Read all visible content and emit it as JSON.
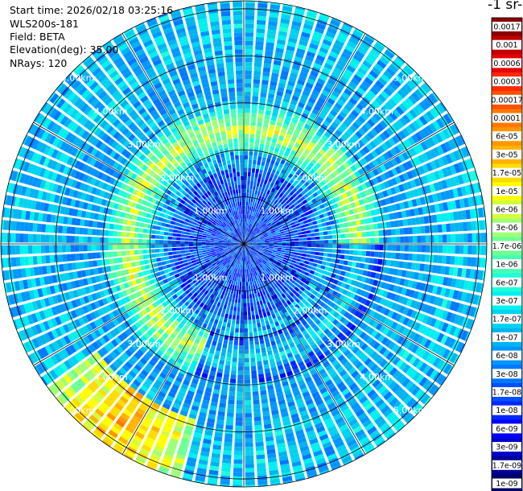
{
  "info": {
    "start_time": "Start time: 2026/02/18 03:25:16",
    "instrument": "WLS200s-181",
    "field": "Field: BETA",
    "elevation": "Elevation(deg): 35.00",
    "nrays": "NRays: 120"
  },
  "colorbar": {
    "title": "-1 sr-",
    "labels": [
      "0.0017",
      "0.001",
      "0.0006",
      "0.0003",
      "0.00017",
      "0.0001",
      "6e-05",
      "3e-05",
      "1.7e-05",
      "1e-05",
      "6e-06",
      "3e-06",
      "1.7e-06",
      "1e-06",
      "6e-07",
      "3e-07",
      "1.7e-07",
      "1e-07",
      "6e-08",
      "3e-08",
      "1.7e-08",
      "1e-08",
      "6e-09",
      "3e-09",
      "1.7e-09",
      "1e-09"
    ],
    "colors": [
      "#8b0000",
      "#c00000",
      "#e60000",
      "#ff2800",
      "#ff5000",
      "#ff7800",
      "#ff9600",
      "#ffb400",
      "#ffdc00",
      "#ffff00",
      "#d2ff3c",
      "#a0ff78",
      "#6eff96",
      "#46ffb4",
      "#1effdc",
      "#00f0f0",
      "#00d2f0",
      "#00b4f0",
      "#0096ff",
      "#0078ff",
      "#0050ff",
      "#0028ff",
      "#0000ff",
      "#0000c8",
      "#000096",
      "#000064"
    ]
  },
  "chart_data": {
    "type": "heatmap",
    "projection": "polar (PPI)",
    "field": "BETA",
    "nrays": 120,
    "max_range_km": 5.0,
    "range_rings_km": [
      1,
      2,
      3,
      4,
      5
    ],
    "range_ring_labels": [
      "1.00km",
      "2.00km",
      "3.00km",
      "4.00km",
      "5.00km"
    ],
    "spokes_deg": [
      0,
      30,
      60,
      90,
      120,
      150,
      180,
      210,
      240,
      270,
      300,
      330
    ],
    "color_scale": "log",
    "value_range": [
      1e-09,
      0.0017
    ],
    "pattern": {
      "inner_0_to_2km": "3e-09 to 3e-08",
      "ring_2_to_3km": "1e-07 to 1e-05",
      "outer_3_to_5km": "6e-08 to 3e-07",
      "hotspot_southwest_4_to_5km": "3e-05 to 0.0001"
    }
  }
}
